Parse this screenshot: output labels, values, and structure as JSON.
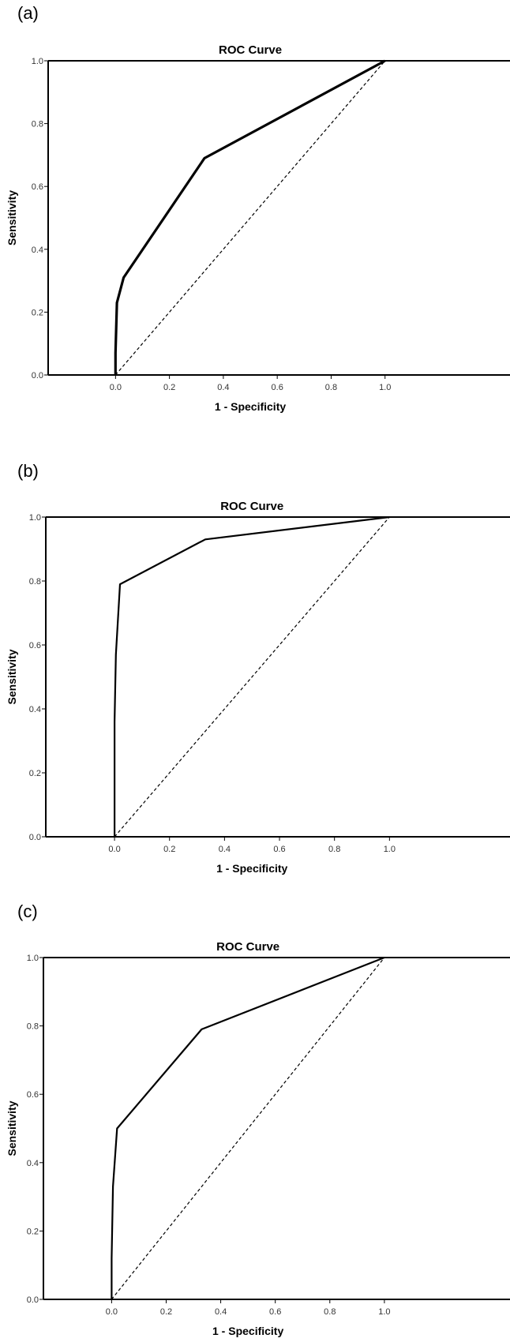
{
  "panels": [
    {
      "label": "(a)"
    },
    {
      "label": "(b)"
    },
    {
      "label": "(c)"
    }
  ],
  "chart_data": [
    {
      "type": "line",
      "title": "ROC Curve",
      "xlabel": "1 - Specificity",
      "ylabel": "Sensitivity",
      "xlim": [
        -0.25,
        1.2
      ],
      "ylim": [
        0,
        1
      ],
      "x_ticks": [
        "0.0",
        "0.2",
        "0.4",
        "0.6",
        "0.8",
        "1.0"
      ],
      "y_ticks": [
        "0.0",
        "0.2",
        "0.4",
        "0.6",
        "0.8",
        "1.0"
      ],
      "grid": false,
      "series": [
        {
          "style": "solid",
          "x": [
            0.0,
            0.0,
            0.005,
            0.03,
            0.33,
            1.0
          ],
          "y": [
            0.0,
            0.07,
            0.23,
            0.31,
            0.69,
            1.0
          ]
        },
        {
          "style": "dashed",
          "x": [
            0.0,
            1.0
          ],
          "y": [
            0.0,
            1.0
          ]
        }
      ]
    },
    {
      "type": "line",
      "title": "ROC Curve",
      "xlabel": "1 - Specificity",
      "ylabel": "Sensitivity",
      "xlim": [
        -0.25,
        1.2
      ],
      "ylim": [
        0,
        1
      ],
      "x_ticks": [
        "0.0",
        "0.2",
        "0.4",
        "0.6",
        "0.8",
        "1.0"
      ],
      "y_ticks": [
        "0.0",
        "0.2",
        "0.4",
        "0.6",
        "0.8",
        "1.0"
      ],
      "grid": false,
      "series": [
        {
          "style": "solid",
          "x": [
            0.0,
            0.0,
            0.005,
            0.02,
            0.33,
            1.0
          ],
          "y": [
            0.0,
            0.36,
            0.57,
            0.79,
            0.93,
            1.0
          ]
        },
        {
          "style": "dashed",
          "x": [
            0.0,
            1.0
          ],
          "y": [
            0.0,
            1.0
          ]
        }
      ]
    },
    {
      "type": "line",
      "title": "ROC Curve",
      "xlabel": "1 - Specificity",
      "ylabel": "Sensitivity",
      "xlim": [
        -0.25,
        1.2
      ],
      "ylim": [
        0,
        1
      ],
      "x_ticks": [
        "0.0",
        "0.2",
        "0.4",
        "0.6",
        "0.8",
        "1.0"
      ],
      "y_ticks": [
        "0.0",
        "0.2",
        "0.4",
        "0.6",
        "0.8",
        "1.0"
      ],
      "grid": false,
      "series": [
        {
          "style": "solid",
          "x": [
            0.0,
            0.0,
            0.005,
            0.02,
            0.33,
            1.0
          ],
          "y": [
            0.0,
            0.12,
            0.33,
            0.5,
            0.79,
            1.0
          ]
        },
        {
          "style": "dashed",
          "x": [
            0.0,
            1.0
          ],
          "y": [
            0.0,
            1.0
          ]
        }
      ]
    }
  ]
}
